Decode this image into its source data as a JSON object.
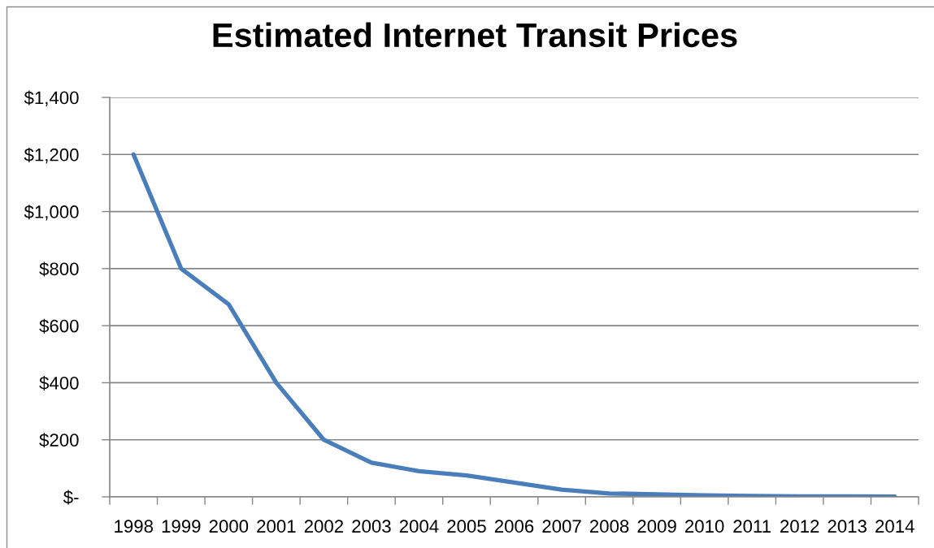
{
  "chart_data": {
    "type": "line",
    "title": "Estimated Internet Transit Prices",
    "categories": [
      "1998",
      "1999",
      "2000",
      "2001",
      "2002",
      "2003",
      "2004",
      "2005",
      "2006",
      "2007",
      "2008",
      "2009",
      "2010",
      "2011",
      "2012",
      "2013",
      "2014"
    ],
    "series": [
      {
        "color": "#4a7ebb",
        "values": [
          1200,
          800,
          675,
          400,
          200,
          120,
          90,
          75,
          50,
          25,
          12,
          9,
          5,
          3,
          2,
          2,
          1
        ]
      }
    ],
    "ylim": [
      0,
      1400
    ],
    "yticks": [
      {
        "value": 0,
        "label": "$-"
      },
      {
        "value": 200,
        "label": "$200"
      },
      {
        "value": 400,
        "label": "$400"
      },
      {
        "value": 600,
        "label": "$600"
      },
      {
        "value": 800,
        "label": "$800"
      },
      {
        "value": 1000,
        "label": "$1,000"
      },
      {
        "value": 1200,
        "label": "$1,200"
      },
      {
        "value": 1400,
        "label": "$1,400"
      }
    ],
    "grid": "y",
    "marker": "none",
    "line_style": "solid"
  }
}
